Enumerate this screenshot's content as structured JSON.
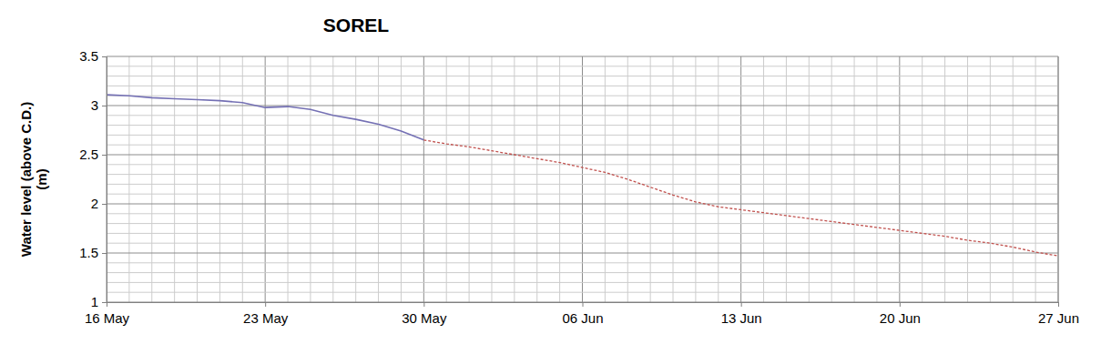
{
  "chart_data": {
    "type": "line",
    "title": "SOREL",
    "y_label": "Water level (above C.D.)\n(m)",
    "categories": [
      "16 May",
      null,
      null,
      null,
      null,
      null,
      null,
      "23 May",
      null,
      null,
      null,
      null,
      null,
      null,
      "30 May",
      null,
      null,
      null,
      null,
      null,
      null,
      "06 Jun",
      null,
      null,
      null,
      null,
      null,
      null,
      "13 Jun",
      null,
      null,
      null,
      null,
      null,
      null,
      "20 Jun",
      null,
      null,
      null,
      null,
      null,
      null,
      "27 Jun"
    ],
    "series": [
      {
        "color": "#7470b4",
        "line_style": "solid",
        "values": [
          3.11,
          3.1,
          3.08,
          3.07,
          3.06,
          3.05,
          3.03,
          2.98,
          2.99,
          2.96,
          2.9,
          2.86,
          2.81,
          2.74,
          2.65,
          null,
          null,
          null,
          null,
          null,
          null,
          null,
          null,
          null,
          null,
          null,
          null,
          null,
          null,
          null,
          null,
          null,
          null,
          null,
          null,
          null,
          null,
          null,
          null,
          null,
          null,
          null,
          null
        ]
      },
      {
        "color": "#c0504d",
        "line_style": "dashed",
        "values": [
          null,
          null,
          null,
          null,
          null,
          null,
          null,
          null,
          null,
          null,
          null,
          null,
          null,
          null,
          2.65,
          2.61,
          2.58,
          2.54,
          2.5,
          2.46,
          2.42,
          2.37,
          2.32,
          2.25,
          2.17,
          2.09,
          2.02,
          1.97,
          1.94,
          1.91,
          1.88,
          1.85,
          1.82,
          1.79,
          1.76,
          1.73,
          1.7,
          1.67,
          1.63,
          1.6,
          1.56,
          1.51,
          1.47
        ]
      }
    ],
    "ylim": [
      1,
      3.5
    ],
    "yticks": [
      1,
      1.5,
      2,
      2.5,
      3,
      3.5
    ],
    "grid": true
  }
}
